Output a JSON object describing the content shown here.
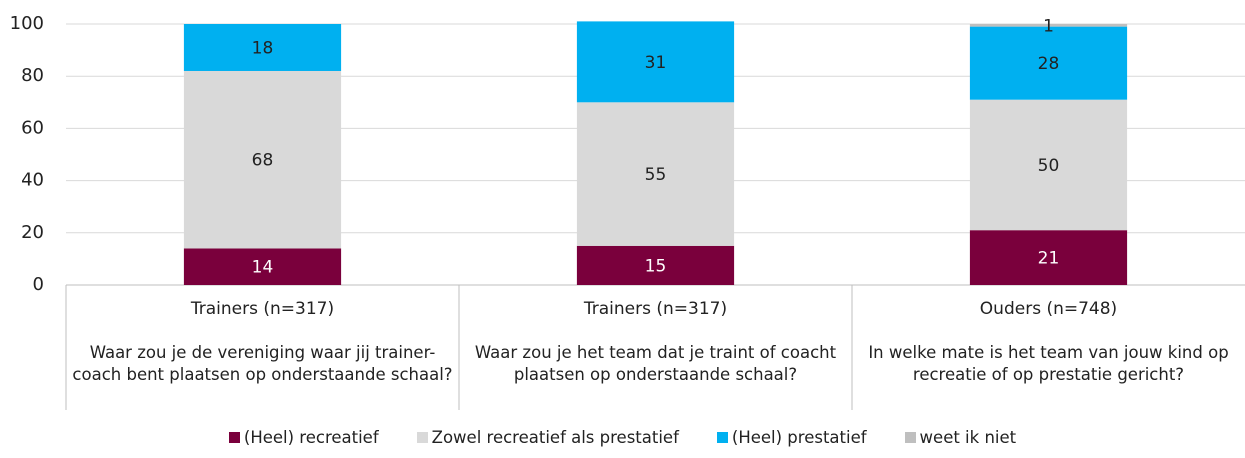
{
  "chart_data": {
    "type": "stacked_bar",
    "categories": [
      "Trainers (n=317)",
      "Trainers (n=317)",
      "Ouders (n=748)"
    ],
    "questions": [
      "Waar zou je de vereniging waar jij trainer-coach bent plaatsen op onderstaande schaal?",
      "Waar zou je het team dat je traint of coacht plaatsen op onderstaande schaal?",
      "In welke mate is het team van jouw kind op recreatie of op prestatie gericht?"
    ],
    "series": [
      {
        "name": "(Heel) recreatief",
        "color": "#7a003c",
        "values": [
          14,
          15,
          21
        ]
      },
      {
        "name": "Zowel recreatief als prestatief",
        "color": "#d9d9d9",
        "values": [
          68,
          55,
          50
        ]
      },
      {
        "name": "(Heel) prestatief",
        "color": "#00b0f0",
        "values": [
          18,
          31,
          28
        ]
      },
      {
        "name": "weet ik niet",
        "color": "#bfbfbf",
        "values": [
          null,
          null,
          1
        ]
      }
    ],
    "ylim": [
      0,
      100
    ],
    "yticks": [
      0,
      20,
      40,
      60,
      80,
      100
    ],
    "grid": true
  }
}
